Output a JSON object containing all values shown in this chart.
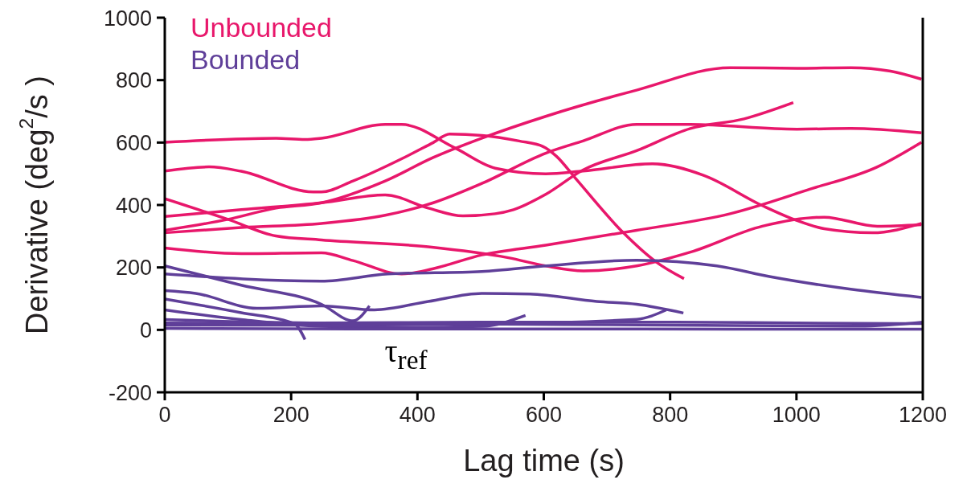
{
  "chart_data": {
    "type": "line",
    "xlabel": "Lag time (s)",
    "ylabel": "Derivative (deg$^{2}$/s )",
    "xlim": [
      0,
      1200
    ],
    "xticks": [
      0,
      200,
      400,
      600,
      800,
      1000,
      1200
    ],
    "ylim": [
      -200,
      1000
    ],
    "yticks": [
      -200,
      0,
      200,
      400,
      600,
      800,
      1000
    ],
    "grid": false,
    "legend": "top left",
    "marker": "none",
    "line_style": "solid",
    "annotations": [
      "τ$_{ref}$"
    ],
    "series": [
      {
        "name": "Unbounded",
        "color": "#e8176b",
        "x": [
          0,
          176,
          222,
          248,
          349,
          375,
          459,
          523,
          603,
          662,
          772,
          853,
          946,
          1001,
          1044,
          1120,
          1198
        ],
        "values": [
          601,
          614,
          610,
          614,
          658,
          658,
          583,
          518,
          500,
          509,
          532,
          495,
          398,
          350,
          324,
          311,
          341
        ]
      },
      {
        "color": "#e8176b",
        "x": [
          0,
          70,
          121,
          235,
          248,
          298,
          375,
          425,
          451,
          502,
          561,
          599,
          620,
          650,
          726,
          777,
          822
        ],
        "values": [
          509,
          522,
          508,
          442,
          442,
          477,
          548,
          600,
          627,
          623,
          605,
          587,
          556,
          486,
          311,
          219,
          164
        ]
      },
      {
        "color": "#e8176b",
        "x": [
          0,
          121,
          248,
          349,
          417,
          472,
          523,
          552,
          603,
          662,
          747,
          832,
          917,
          995
        ],
        "values": [
          363,
          385,
          407,
          432,
          390,
          365,
          372,
          385,
          434,
          512,
          574,
          645,
          676,
          728
        ]
      },
      {
        "color": "#e8176b",
        "x": [
          0,
          100,
          176,
          248,
          349,
          425,
          502,
          603,
          747,
          895,
          1001,
          1086,
          1149,
          1198
        ],
        "values": [
          319,
          354,
          390,
          407,
          477,
          552,
          614,
          684,
          768,
          840,
          838,
          840,
          829,
          803
        ]
      },
      {
        "color": "#e8176b",
        "x": [
          0,
          121,
          248,
          349,
          425,
          502,
          603,
          662,
          747,
          832,
          1001,
          1086,
          1198
        ],
        "values": [
          311,
          328,
          341,
          367,
          407,
          469,
          566,
          605,
          658,
          658,
          643,
          645,
          631
        ]
      },
      {
        "color": "#e8176b",
        "x": [
          0,
          100,
          176,
          248,
          417,
          544,
          603,
          663,
          747,
          832,
          946,
          1044,
          1128,
          1198
        ],
        "values": [
          420,
          354,
          301,
          288,
          266,
          231,
          205,
          189,
          205,
          249,
          332,
          361,
          332,
          337
        ]
      },
      {
        "color": "#e8176b",
        "x": [
          0,
          121,
          248,
          298,
          375,
          425,
          502,
          603,
          747,
          895,
          1022,
          1128,
          1198
        ],
        "values": [
          262,
          244,
          247,
          222,
          179,
          196,
          240,
          271,
          319,
          372,
          451,
          522,
          601
        ]
      },
      {
        "name": "Bounded",
        "color": "#5f3f99",
        "x": [
          0,
          248,
          353,
          502,
          603,
          747,
          874,
          959,
          1086,
          1198
        ],
        "values": [
          179,
          156,
          179,
          187,
          205,
          223,
          205,
          170,
          130,
          104
        ]
      },
      {
        "color": "#5f3f99",
        "x": [
          0,
          121,
          248,
          298,
          324
        ],
        "values": [
          205,
          143,
          82,
          29,
          77
        ]
      },
      {
        "color": "#5f3f99",
        "x": [
          0,
          49,
          146,
          248,
          332,
          417,
          502,
          578,
          684,
          747,
          821
        ],
        "values": [
          126,
          117,
          69,
          77,
          64,
          91,
          117,
          115,
          91,
          82,
          54
        ]
      },
      {
        "color": "#5f3f99",
        "x": [
          0,
          121,
          205,
          222
        ],
        "values": [
          99,
          55,
          20,
          -31
        ]
      },
      {
        "color": "#5f3f99",
        "x": [
          0,
          121,
          248,
          375,
          502,
          571
        ],
        "values": [
          64,
          33,
          11,
          7,
          11,
          46
        ]
      },
      {
        "color": "#5f3f99",
        "x": [
          0,
          248,
          500,
          800,
          1000,
          1200
        ],
        "values": [
          33,
          22,
          25,
          25,
          22,
          20
        ]
      },
      {
        "color": "#5f3f99",
        "x": [
          0,
          300,
          500,
          747,
          794
        ],
        "values": [
          15,
          15,
          18,
          34,
          64
        ]
      },
      {
        "color": "#5f3f99",
        "x": [
          0,
          300,
          600,
          900,
          1200
        ],
        "values": [
          5,
          3,
          3,
          2,
          2
        ]
      },
      {
        "color": "#5f3f99",
        "x": [
          0,
          400,
          800,
          1100,
          1200
        ],
        "values": [
          22,
          20,
          15,
          12,
          25
        ]
      }
    ]
  }
}
